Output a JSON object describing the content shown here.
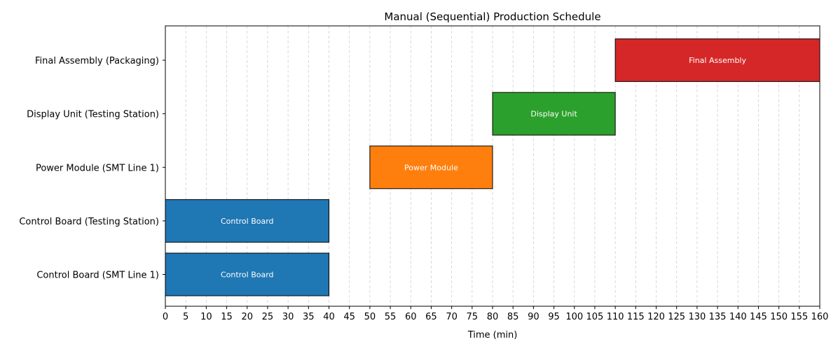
{
  "chart_data": {
    "type": "gantt",
    "title": "Manual (Sequential) Production Schedule",
    "xlabel": "Time (min)",
    "ylabel": "",
    "xlim": [
      0,
      160
    ],
    "xticks": [
      0,
      5,
      10,
      15,
      20,
      25,
      30,
      35,
      40,
      45,
      50,
      55,
      60,
      65,
      70,
      75,
      80,
      85,
      90,
      95,
      100,
      105,
      110,
      115,
      120,
      125,
      130,
      135,
      140,
      145,
      150,
      155,
      160
    ],
    "grid": "vertical dashed",
    "rows": [
      "Control Board (SMT Line 1)",
      "Control Board (Testing Station)",
      "Power Module (SMT Line 1)",
      "Display Unit (Testing Station)",
      "Final Assembly (Packaging)"
    ],
    "tasks": [
      {
        "row": "Control Board (SMT Line 1)",
        "label": "Control Board",
        "start": 0,
        "end": 40,
        "color": "#1f77b4"
      },
      {
        "row": "Control Board (Testing Station)",
        "label": "Control Board",
        "start": 0,
        "end": 40,
        "color": "#1f77b4"
      },
      {
        "row": "Power Module (SMT Line 1)",
        "label": "Power Module",
        "start": 50,
        "end": 80,
        "color": "#ff7f0e"
      },
      {
        "row": "Display Unit (Testing Station)",
        "label": "Display Unit",
        "start": 80,
        "end": 110,
        "color": "#2ca02c"
      },
      {
        "row": "Final Assembly (Packaging)",
        "label": "Final Assembly",
        "start": 110,
        "end": 160,
        "color": "#d62728"
      }
    ]
  }
}
